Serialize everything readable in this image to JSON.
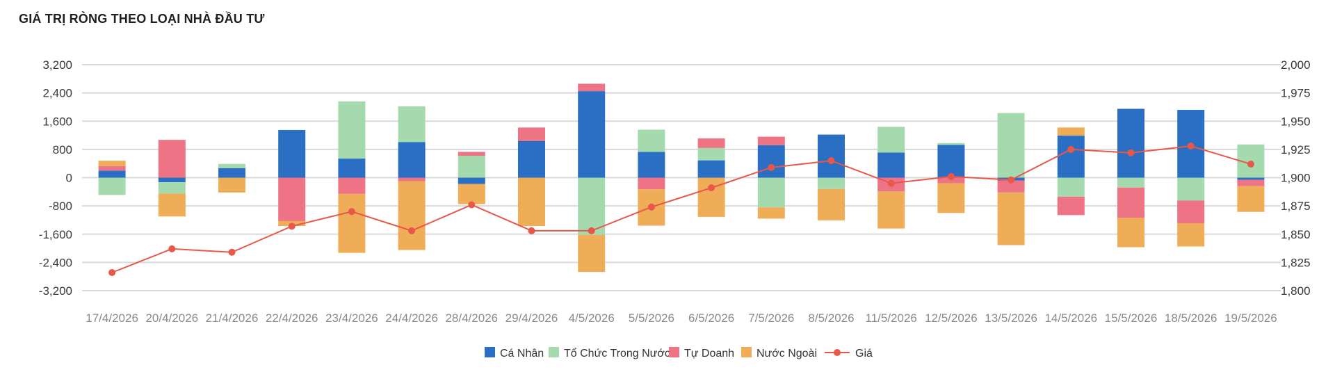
{
  "title": "GIÁ TRỊ RÒNG THEO LOẠI NHÀ ĐẦU TƯ",
  "chart_data": {
    "type": "bar",
    "stacked": true,
    "categories": [
      "17/4/2026",
      "20/4/2026",
      "21/4/2026",
      "22/4/2026",
      "23/4/2026",
      "24/4/2026",
      "28/4/2026",
      "29/4/2026",
      "4/5/2026",
      "5/5/2026",
      "6/5/2026",
      "7/5/2026",
      "8/5/2026",
      "11/5/2026",
      "12/5/2026",
      "13/5/2026",
      "14/5/2026",
      "15/5/2026",
      "18/5/2026",
      "19/5/2026"
    ],
    "y_left": {
      "ylim": [
        -3200,
        3200
      ],
      "ticks": [
        3200,
        2400,
        1600,
        800,
        0,
        -800,
        -1600,
        -2400,
        -3200
      ],
      "tick_labels": [
        "3,200",
        "2,400",
        "1,600",
        "800",
        "0",
        "-800",
        "-1,600",
        "-2,400",
        "-3,200"
      ]
    },
    "y_right": {
      "ylim": [
        1800,
        2000
      ],
      "ticks": [
        2000,
        1975,
        1950,
        1925,
        1900,
        1875,
        1850,
        1825,
        1800
      ],
      "tick_labels": [
        "2,000",
        "1,975",
        "1,950",
        "1,925",
        "1,900",
        "1,875",
        "1,850",
        "1,825",
        "1,800"
      ]
    },
    "grid": true,
    "legend_position": "bottom",
    "series": [
      {
        "name": "Cá Nhân",
        "color": "#2a6fc4",
        "axis": "left",
        "values": [
          200,
          -130,
          270,
          1350,
          540,
          1010,
          -180,
          1040,
          2450,
          730,
          490,
          920,
          1220,
          710,
          930,
          -80,
          1190,
          1950,
          1920,
          -60
        ]
      },
      {
        "name": "Tổ Chức Trong Nước",
        "color": "#a5d9ae",
        "axis": "left",
        "values": [
          -490,
          -320,
          120,
          0,
          1620,
          1010,
          620,
          0,
          -1620,
          630,
          350,
          -840,
          -320,
          730,
          50,
          1830,
          -540,
          -280,
          -650,
          940
        ]
      },
      {
        "name": "Tự Doanh",
        "color": "#ee7384",
        "axis": "left",
        "values": [
          130,
          1070,
          0,
          -1230,
          -460,
          -100,
          110,
          380,
          210,
          -330,
          270,
          240,
          0,
          -390,
          -160,
          -340,
          -520,
          -860,
          -640,
          -180
        ]
      },
      {
        "name": "Nước Ngoài",
        "color": "#efad57",
        "axis": "left",
        "values": [
          150,
          -650,
          -420,
          -140,
          -1670,
          -1950,
          -570,
          -1370,
          -1050,
          -1030,
          -1110,
          -320,
          -890,
          -1050,
          -840,
          -1490,
          230,
          -830,
          -660,
          -730
        ]
      },
      {
        "name": "Giá",
        "color": "#e8584a",
        "type": "line",
        "axis": "right",
        "values": [
          1816,
          1837,
          1834,
          1857,
          1870,
          1853,
          1876,
          1853,
          1853,
          1874,
          1891,
          1909,
          1915,
          1895,
          1901,
          1898,
          1925,
          1922,
          1928,
          1912
        ]
      }
    ]
  }
}
